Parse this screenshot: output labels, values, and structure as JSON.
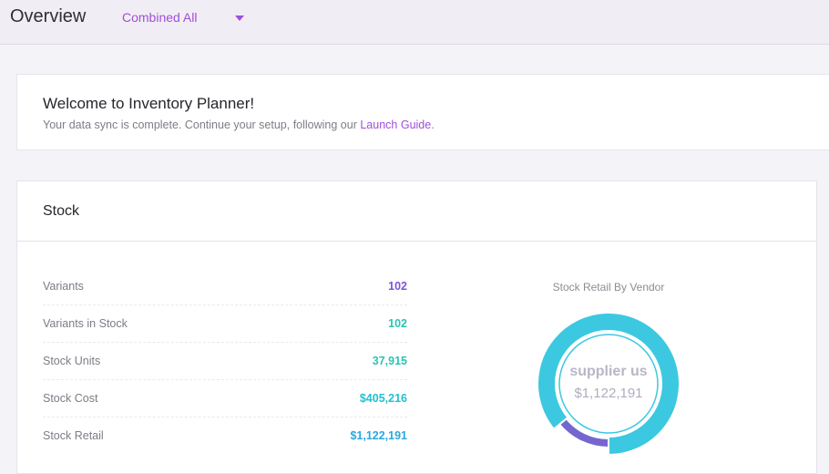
{
  "header": {
    "title": "Overview",
    "store_selector": "Combined All"
  },
  "welcome": {
    "title": "Welcome to Inventory Planner!",
    "text": "Your data sync is complete. Continue your setup, following our ",
    "link": "Launch Guide",
    "suffix": "."
  },
  "stock": {
    "title": "Stock",
    "metrics": [
      {
        "label": "Variants",
        "value": "102",
        "color": "#7b55d6"
      },
      {
        "label": "Variants in Stock",
        "value": "102",
        "color": "#2bc5b2"
      },
      {
        "label": "Stock Units",
        "value": "37,915",
        "color": "#2bc5b2"
      },
      {
        "label": "Stock Cost",
        "value": "$405,216",
        "color": "#22c0cf"
      },
      {
        "label": "Stock Retail",
        "value": "$1,122,191",
        "color": "#2aa8dd"
      }
    ]
  },
  "chart_data": {
    "type": "pie",
    "title": "Stock Retail By Vendor",
    "center_label": "supplier us",
    "center_value": "$1,122,191",
    "slices": [
      {
        "value": 0.86,
        "color": "#3cc8e0"
      },
      {
        "value": 0.14,
        "color": "#7566cf"
      }
    ]
  }
}
